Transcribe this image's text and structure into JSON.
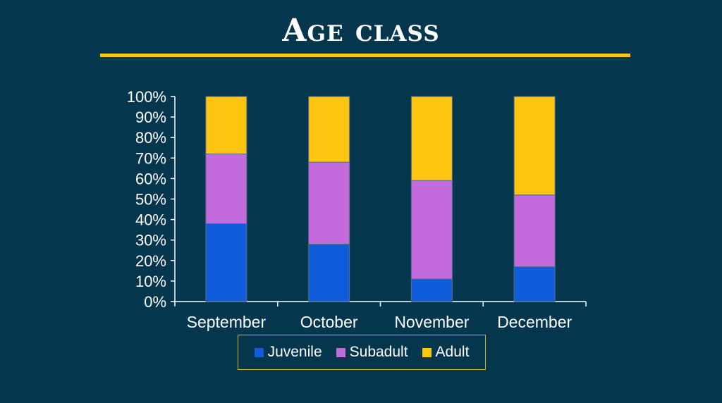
{
  "slide": {
    "title": "Age class",
    "accent_color": "#f5c518",
    "background_color": "#04364e"
  },
  "chart_data": {
    "type": "bar",
    "stacked": true,
    "percent": true,
    "categories": [
      "September",
      "October",
      "November",
      "December"
    ],
    "series": [
      {
        "name": "Juvenile",
        "color": "#0f5ddb",
        "values": [
          38,
          28,
          11,
          17
        ]
      },
      {
        "name": "Subadult",
        "color": "#c36bdc",
        "values": [
          34,
          40,
          48,
          35
        ]
      },
      {
        "name": "Adult",
        "color": "#fdc510",
        "values": [
          28,
          32,
          41,
          48
        ]
      }
    ],
    "ylim": [
      0,
      100
    ],
    "yticks": [
      "0%",
      "10%",
      "20%",
      "30%",
      "40%",
      "50%",
      "60%",
      "70%",
      "80%",
      "90%",
      "100%"
    ],
    "grid": false,
    "legend": "bottom",
    "title": "",
    "xlabel": "",
    "ylabel": ""
  }
}
